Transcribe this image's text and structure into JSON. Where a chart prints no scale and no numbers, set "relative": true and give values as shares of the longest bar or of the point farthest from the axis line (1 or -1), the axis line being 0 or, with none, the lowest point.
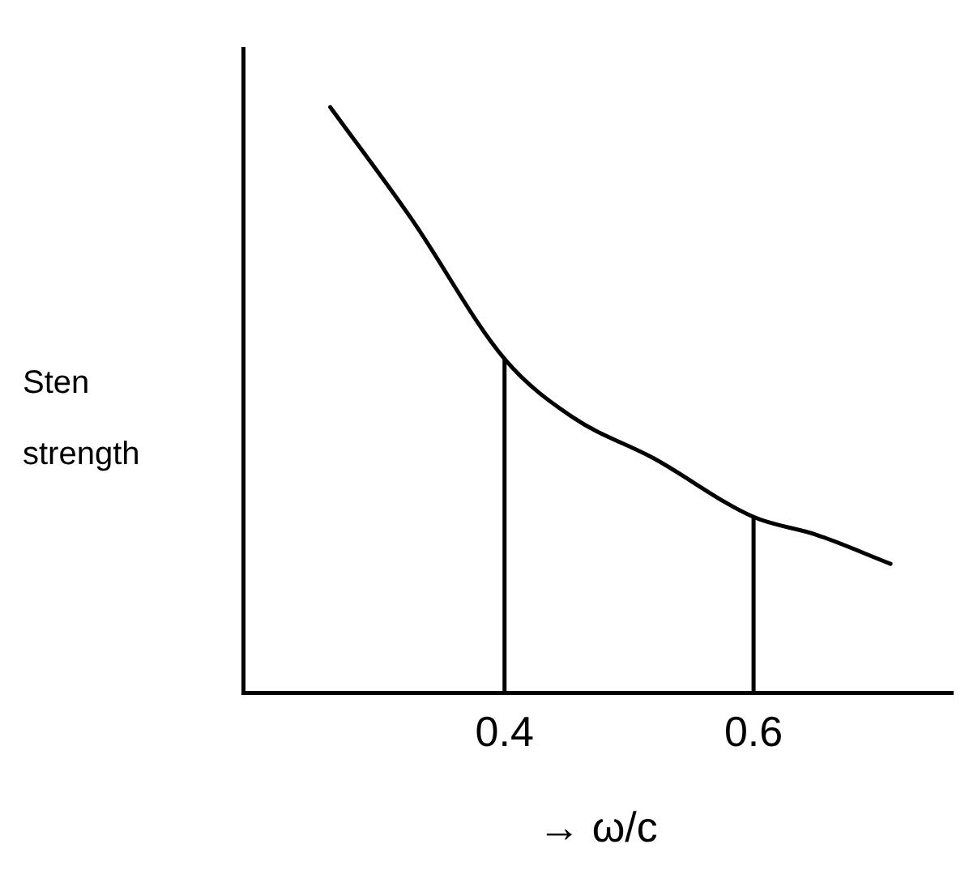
{
  "chart_data": {
    "type": "line",
    "relative": true,
    "xlabel": "→ ω/c",
    "ylabel": "Sten strength",
    "xlim": [
      0.19,
      0.76
    ],
    "xticks": [
      0.4,
      0.6
    ],
    "tick_labels": "x",
    "grid": false,
    "legend": false,
    "marker": "none",
    "line_style": "solid",
    "series": [
      {
        "color": "#000000",
        "x": [
          0.26,
          0.325,
          0.4,
          0.455,
          0.52,
          0.6,
          0.65,
          0.71
        ],
        "values": [
          1,
          0.81,
          0.57,
          0.47,
          0.4,
          0.3,
          0.27,
          0.22
        ]
      },
      {
        "color": "#000000",
        "x": [
          0.4,
          0.4
        ],
        "values": [
          0,
          0.57
        ]
      },
      {
        "color": "#000000",
        "x": [
          0.6,
          0.6
        ],
        "values": [
          0,
          0.3
        ]
      }
    ]
  }
}
